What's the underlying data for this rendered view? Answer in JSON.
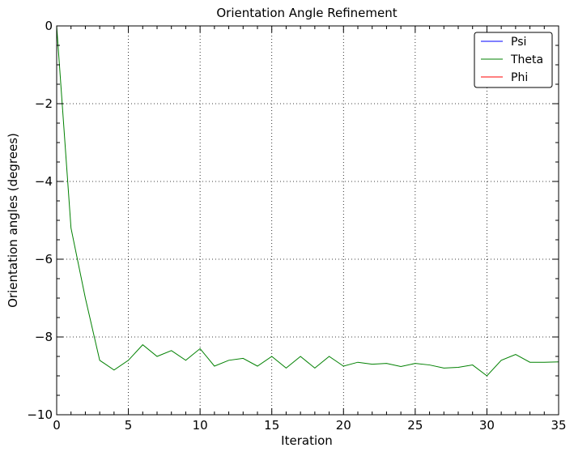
{
  "chart_data": {
    "type": "line",
    "title": "Orientation Angle Refinement",
    "xlabel": "Iteration",
    "ylabel": "Orientation angles (degrees)",
    "xlim": [
      0,
      35
    ],
    "ylim": [
      -10,
      0
    ],
    "xticks": [
      0,
      5,
      10,
      15,
      20,
      25,
      30,
      35
    ],
    "yticks": [
      0,
      -2,
      -4,
      -6,
      -8,
      -10
    ],
    "xtick_labels": [
      "0",
      "5",
      "10",
      "15",
      "20",
      "25",
      "30",
      "35"
    ],
    "ytick_labels": [
      "0",
      "−2",
      "−4",
      "−6",
      "−8",
      "−10"
    ],
    "grid": true,
    "legend_position": "top-right",
    "series": [
      {
        "name": "Psi",
        "color": "#0000ff",
        "x": [
          0,
          35
        ],
        "y": [
          0,
          0
        ]
      },
      {
        "name": "Theta",
        "color": "#008000",
        "x": [
          0,
          1,
          2,
          3,
          4,
          5,
          6,
          7,
          8,
          9,
          10,
          11,
          12,
          13,
          14,
          15,
          16,
          17,
          18,
          19,
          20,
          21,
          22,
          23,
          24,
          25,
          26,
          27,
          28,
          29,
          30,
          31,
          32,
          33,
          34,
          35
        ],
        "y": [
          0,
          -5.2,
          -7.0,
          -8.6,
          -8.85,
          -8.6,
          -8.2,
          -8.5,
          -8.35,
          -8.6,
          -8.3,
          -8.75,
          -8.6,
          -8.55,
          -8.75,
          -8.5,
          -8.8,
          -8.5,
          -8.8,
          -8.5,
          -8.75,
          -8.65,
          -8.7,
          -8.68,
          -8.76,
          -8.68,
          -8.72,
          -8.8,
          -8.78,
          -8.72,
          -9.0,
          -8.6,
          -8.45,
          -8.65,
          -8.65,
          -8.64
        ]
      },
      {
        "name": "Phi",
        "color": "#ff0000",
        "x": [
          0,
          35
        ],
        "y": [
          0,
          0
        ]
      }
    ]
  }
}
